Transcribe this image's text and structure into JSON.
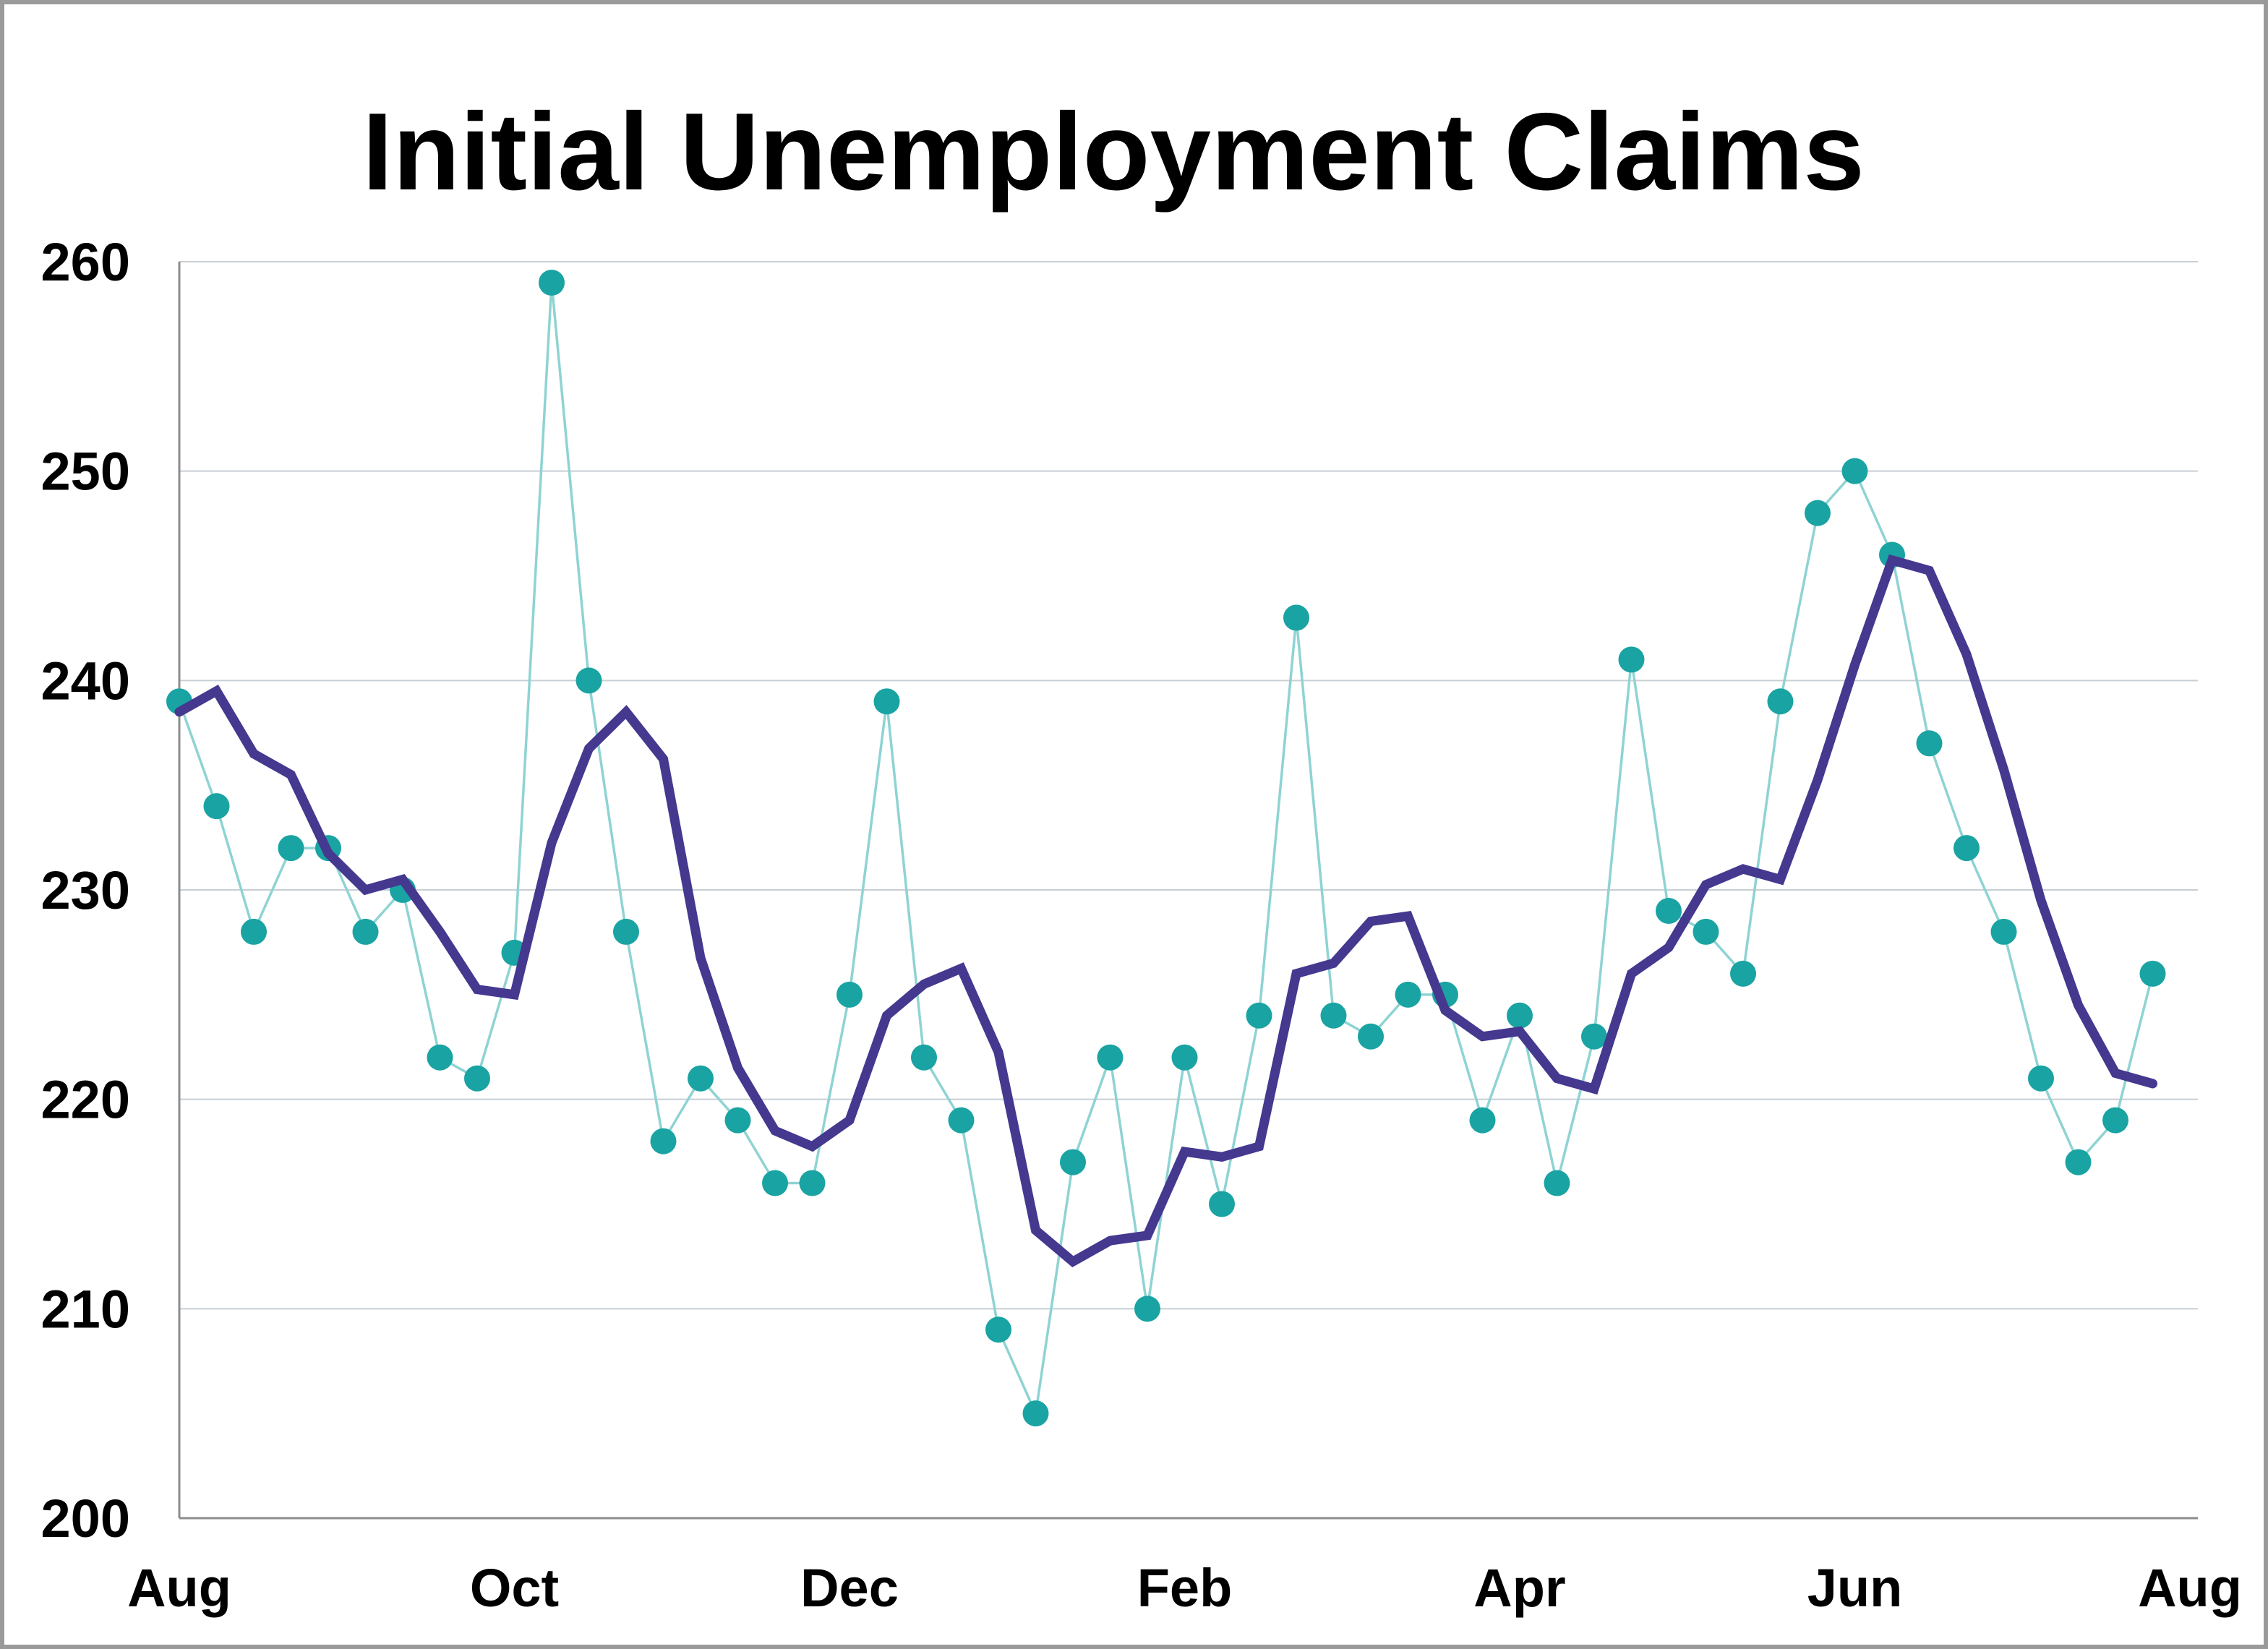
{
  "chart_data": {
    "type": "line",
    "title": "Initial Unemployment Claims",
    "xlabel": "",
    "ylabel": "",
    "ylim": [
      200,
      260
    ],
    "yticks": [
      200,
      210,
      220,
      230,
      240,
      250,
      260
    ],
    "y_tick_labels": [
      "200",
      "210",
      "220",
      "230",
      "240",
      "250",
      "260"
    ],
    "x_tick_labels": [
      "Aug",
      "Oct",
      "Dec",
      "Feb",
      "Apr",
      "Jun",
      "Aug"
    ],
    "x_tick_week_index": [
      0,
      9,
      18,
      27,
      36,
      45,
      54
    ],
    "grid": true,
    "legend": "none",
    "series": [
      {
        "style": "markers with thin line",
        "color": "#1aa3a3",
        "line_color": "#8fd3d3",
        "values": [
          239,
          234,
          228,
          232,
          232,
          228,
          230,
          222,
          221,
          227,
          259,
          240,
          228,
          218,
          221,
          219,
          216,
          216,
          225,
          239,
          222,
          219,
          209,
          205,
          217,
          222,
          210,
          222,
          215,
          224,
          243,
          224,
          223,
          225,
          225,
          219,
          224,
          216,
          223,
          241,
          229,
          228,
          226,
          239,
          248,
          250,
          246,
          237,
          232,
          228,
          221,
          217,
          219,
          226
        ]
      },
      {
        "style": "thick line",
        "color": "#44388f",
        "values": [
          238.5,
          239.5,
          236.5,
          235.5,
          231.75,
          230,
          230.5,
          228,
          225.25,
          225,
          232.25,
          236.75,
          238.5,
          236.25,
          226.75,
          221.5,
          218.5,
          217.75,
          219,
          224,
          225.5,
          226.25,
          222.25,
          213.75,
          212.25,
          213.25,
          213.5,
          217.5,
          217.25,
          217.75,
          226,
          226.5,
          228.5,
          228.75,
          224.25,
          223,
          223.25,
          221,
          220.5,
          226,
          227.25,
          230.25,
          231,
          230.5,
          235.25,
          240.75,
          245.75,
          245.25,
          241.25,
          235.75,
          229.5,
          224.5,
          221.25,
          220.75
        ]
      }
    ]
  },
  "colors": {
    "background": "#ffffff",
    "frame": "#9a9a9a",
    "gridline": "#c8cfd4",
    "axis": "#8c8c8c"
  }
}
